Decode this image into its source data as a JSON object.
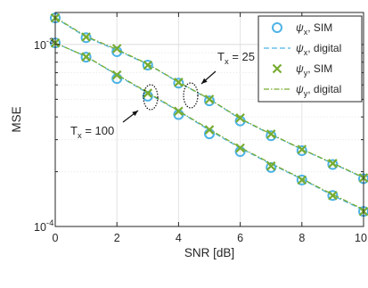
{
  "chart_data": {
    "type": "line",
    "xlabel": "SNR [dB]",
    "ylabel": "MSE",
    "xlim": [
      0,
      10
    ],
    "ylim": [
      0.0001,
      0.0015
    ],
    "yscale": "log",
    "grid": true,
    "legend_position": "top-right",
    "x_ticks": [
      "0",
      "2",
      "4",
      "6",
      "8",
      "10"
    ],
    "y_ticks": [
      {
        "value": 0.001,
        "base": "10",
        "exp": "-3"
      },
      {
        "value": 0.0001,
        "base": "10",
        "exp": "-4"
      }
    ],
    "x": [
      0,
      1,
      2,
      3,
      4,
      5,
      6,
      7,
      8,
      9,
      10
    ],
    "series": [
      {
        "group": "Tx = 25",
        "legend_index": 0,
        "style": "circles",
        "color": "#4db3e6",
        "values": [
          0.0014,
          0.00109,
          0.000913,
          0.000771,
          0.000613,
          0.00049,
          0.00038,
          0.000315,
          0.000261,
          0.000219,
          0.000183
        ]
      },
      {
        "group": "Tx = 25",
        "legend_index": 1,
        "style": "dash",
        "color": "#4db3e6",
        "values": [
          0.0014,
          0.0011,
          0.00093,
          0.00078,
          0.00062,
          0.0005,
          0.00039,
          0.00032,
          0.000265,
          0.000222,
          0.000185
        ]
      },
      {
        "group": "Tx = 25",
        "legend_index": 2,
        "style": "crosses",
        "color": "#77ac30",
        "values": [
          0.0014,
          0.0011,
          0.00095,
          0.00077,
          0.00062,
          0.0005,
          0.000395,
          0.000322,
          0.000265,
          0.000222,
          0.000185
        ]
      },
      {
        "group": "Tx = 25",
        "legend_index": 3,
        "style": "dashdot",
        "color": "#77ac30",
        "values": [
          0.00141,
          0.00111,
          0.00094,
          0.000782,
          0.000622,
          0.000502,
          0.000392,
          0.000322,
          0.000266,
          0.000223,
          0.000186
        ]
      },
      {
        "group": "Tx = 100",
        "legend_index": 0,
        "style": "circles",
        "color": "#4db3e6",
        "values": [
          0.00102,
          0.000852,
          0.00065,
          0.00052,
          0.000412,
          0.000323,
          0.000258,
          0.000211,
          0.00018,
          0.000148,
          0.000121
        ]
      },
      {
        "group": "Tx = 100",
        "legend_index": 1,
        "style": "dash",
        "color": "#4db3e6",
        "values": [
          0.00102,
          0.00086,
          0.00068,
          0.00054,
          0.00043,
          0.000338,
          0.00027,
          0.00022,
          0.000182,
          0.000148,
          0.000123
        ]
      },
      {
        "group": "Tx = 100",
        "legend_index": 2,
        "style": "crosses",
        "color": "#77ac30",
        "values": [
          0.00102,
          0.000855,
          0.00068,
          0.00054,
          0.00043,
          0.00034,
          0.00027,
          0.000215,
          0.00018,
          0.000148,
          0.000121
        ]
      },
      {
        "group": "Tx = 100",
        "legend_index": 3,
        "style": "dashdot",
        "color": "#77ac30",
        "values": [
          0.00102,
          0.00086,
          0.000685,
          0.000545,
          0.000432,
          0.000342,
          0.000272,
          0.000222,
          0.000183,
          0.00015,
          0.000124
        ]
      }
    ],
    "legend": [
      {
        "symbol": "ψ",
        "sub": "x",
        "suffix": ", SIM",
        "style": "circles",
        "color": "#4db3e6"
      },
      {
        "symbol": "ψ",
        "sub": "x",
        "suffix": ", digital",
        "style": "dash",
        "color": "#4db3e6"
      },
      {
        "symbol": "ψ",
        "sub": "y",
        "suffix": ", SIM",
        "style": "crosses",
        "color": "#77ac30"
      },
      {
        "symbol": "ψ",
        "sub": "y",
        "suffix": ", digital",
        "style": "dashdot",
        "color": "#77ac30"
      }
    ],
    "annotations": [
      {
        "base": "T",
        "sub": "x",
        "suffix": " = 25",
        "ellipse_x": 4.4,
        "ellipse_y": 0.00057
      },
      {
        "base": "T",
        "sub": "x",
        "suffix": " = 100",
        "ellipse_x": 3.2,
        "ellipse_y": 0.00057
      }
    ]
  }
}
